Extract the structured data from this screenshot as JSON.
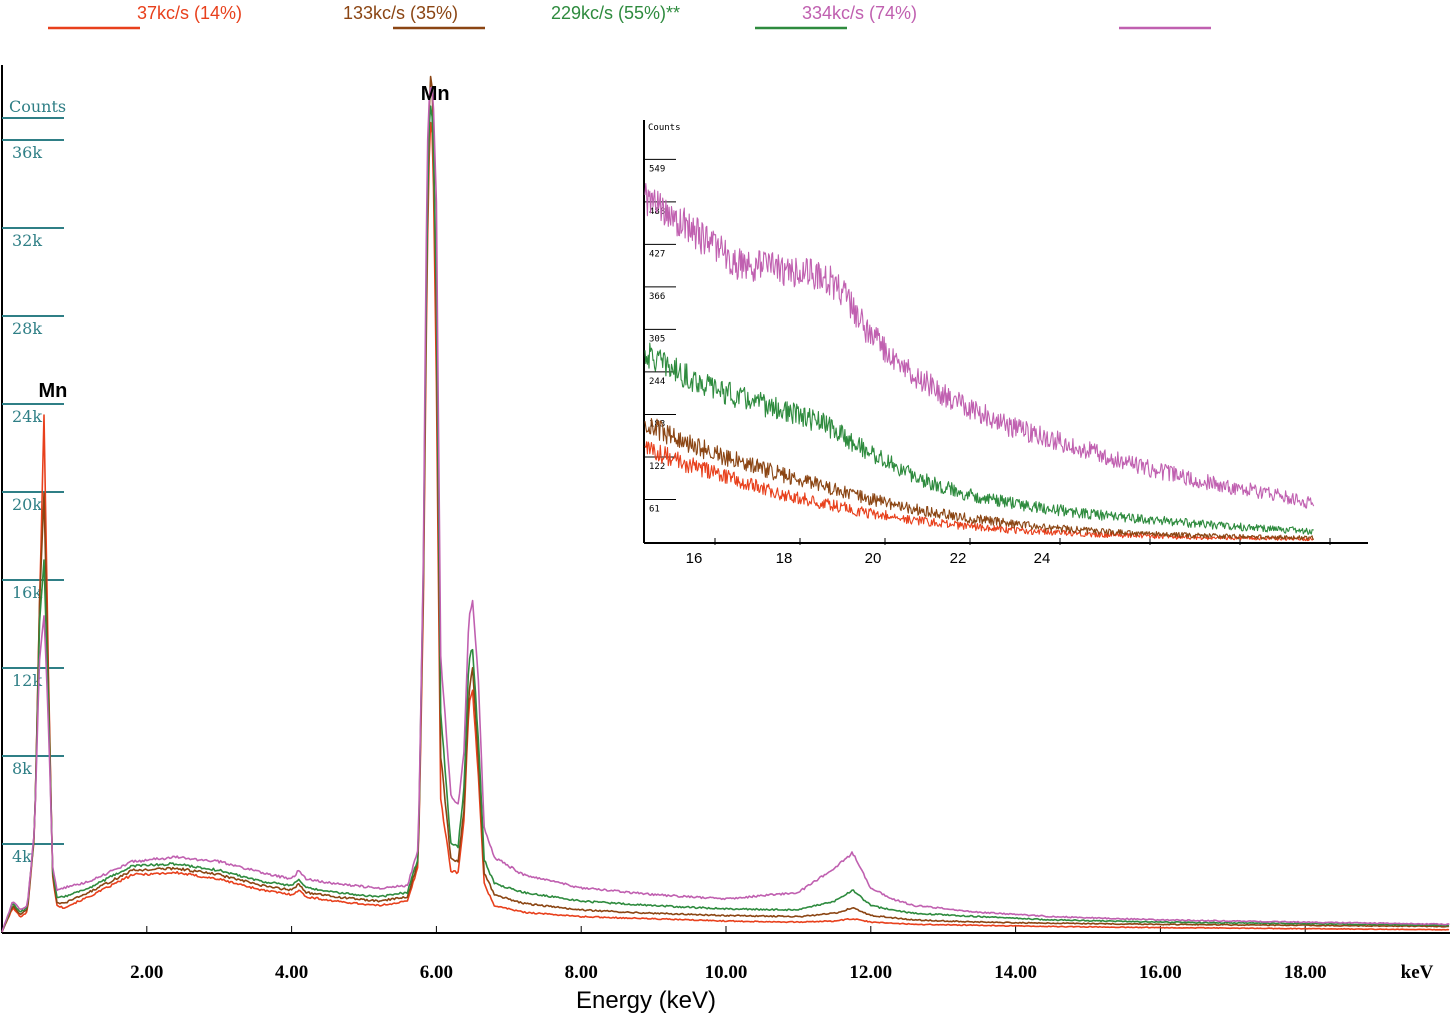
{
  "colors": {
    "red": "#e8401c",
    "brown": "#8b4513",
    "green": "#2e8b3e",
    "magenta": "#c060b0",
    "axis": "#000000",
    "tick": "#2f7f86"
  },
  "legend": [
    {
      "label": "37kc/s (14%)",
      "color": "#e8401c"
    },
    {
      "label": "133kc/s (35%)",
      "color": "#8b4513"
    },
    {
      "label": "229kc/s (55%)**",
      "color": "#2e8b3e"
    },
    {
      "label": "334kc/s (74%)",
      "color": "#c060b0"
    }
  ],
  "chart_data": [
    {
      "type": "line",
      "xlabel": "Energy (keV)",
      "x_unit_label": "keV",
      "ylabel": "Counts",
      "xlim": [
        0,
        20
      ],
      "ylim": [
        0,
        40000
      ],
      "x_ticks": [
        "2.00",
        "4.00",
        "6.00",
        "8.00",
        "10.00",
        "12.00",
        "14.00",
        "16.00",
        "18.00"
      ],
      "x_tick_values": [
        2,
        4,
        6,
        8,
        10,
        12,
        14,
        16,
        18
      ],
      "y_ticks": [
        "4k",
        "8k",
        "12k",
        "16k",
        "20k",
        "24k",
        "28k",
        "32k",
        "36k"
      ],
      "y_tick_values": [
        4000,
        8000,
        12000,
        16000,
        20000,
        24000,
        28000,
        32000,
        36000
      ],
      "annotations": [
        {
          "text": "Mn",
          "x": 0.62,
          "y": 24500
        },
        {
          "text": "Mn",
          "x": 5.9,
          "y": 38000
        }
      ],
      "series": [
        {
          "name": "37kc/s (14%)",
          "color": "#e8401c",
          "x": [
            0,
            0.15,
            0.25,
            0.35,
            0.45,
            0.52,
            0.58,
            0.64,
            0.7,
            0.76,
            0.85,
            1.2,
            1.8,
            2.4,
            3.0,
            3.6,
            4.0,
            4.1,
            4.2,
            4.6,
            5.2,
            5.6,
            5.75,
            5.82,
            5.87,
            5.91,
            5.95,
            6.0,
            6.06,
            6.2,
            6.3,
            6.38,
            6.45,
            6.5,
            6.58,
            6.66,
            6.8,
            7.2,
            8.0,
            9.0,
            10.0,
            11.0,
            11.5,
            11.75,
            12.0,
            12.3,
            12.6,
            13.5,
            14.5,
            16.0,
            18.0,
            20.0
          ],
          "y": [
            0,
            1100,
            700,
            900,
            4500,
            15000,
            23500,
            12000,
            2500,
            1200,
            1100,
            1600,
            2600,
            2700,
            2400,
            1900,
            1700,
            1900,
            1600,
            1400,
            1200,
            1400,
            3000,
            15000,
            30000,
            37000,
            36000,
            25000,
            6000,
            2800,
            2700,
            5000,
            10500,
            11000,
            7000,
            2200,
            1200,
            900,
            700,
            600,
            500,
            450,
            500,
            600,
            450,
            400,
            350,
            300,
            250,
            200,
            150,
            100
          ]
        },
        {
          "name": "133kc/s (35%)",
          "color": "#8b4513",
          "x": [
            0,
            0.15,
            0.25,
            0.35,
            0.45,
            0.52,
            0.58,
            0.64,
            0.7,
            0.76,
            0.85,
            1.2,
            1.8,
            2.4,
            3.0,
            3.6,
            4.0,
            4.1,
            4.2,
            4.6,
            5.2,
            5.6,
            5.75,
            5.82,
            5.87,
            5.91,
            5.95,
            6.0,
            6.06,
            6.2,
            6.3,
            6.38,
            6.45,
            6.5,
            6.58,
            6.66,
            6.8,
            7.2,
            8.0,
            9.0,
            10.0,
            11.0,
            11.5,
            11.75,
            12.0,
            12.3,
            12.6,
            13.5,
            14.5,
            16.0,
            18.0,
            20.0
          ],
          "y": [
            0,
            1200,
            800,
            1000,
            4600,
            15000,
            20000,
            11500,
            2600,
            1300,
            1300,
            1800,
            2800,
            2900,
            2600,
            2100,
            1900,
            2200,
            1800,
            1600,
            1400,
            1600,
            3200,
            16000,
            32000,
            39000,
            38000,
            28000,
            8000,
            3300,
            3200,
            5500,
            11000,
            12000,
            8000,
            2700,
            1700,
            1300,
            1000,
            850,
            750,
            700,
            850,
            1100,
            750,
            650,
            550,
            450,
            400,
            350,
            300,
            250
          ]
        },
        {
          "name": "229kc/s (55%)**",
          "color": "#2e8b3e",
          "x": [
            0,
            0.15,
            0.25,
            0.35,
            0.45,
            0.52,
            0.58,
            0.64,
            0.7,
            0.76,
            0.85,
            1.2,
            1.8,
            2.4,
            3.0,
            3.6,
            4.0,
            4.1,
            4.2,
            4.6,
            5.2,
            5.6,
            5.75,
            5.82,
            5.87,
            5.91,
            5.95,
            6.0,
            6.06,
            6.2,
            6.3,
            6.38,
            6.45,
            6.5,
            6.58,
            6.66,
            6.8,
            7.2,
            8.0,
            9.0,
            10.0,
            11.0,
            11.5,
            11.75,
            12.0,
            12.3,
            12.6,
            13.5,
            14.5,
            16.0,
            18.0,
            20.0
          ],
          "y": [
            0,
            1300,
            900,
            1100,
            4600,
            14000,
            17000,
            10500,
            2800,
            1600,
            1600,
            2000,
            3000,
            3100,
            2800,
            2300,
            2100,
            2400,
            2000,
            1800,
            1600,
            1800,
            3400,
            16500,
            32000,
            38000,
            37000,
            29000,
            10000,
            4000,
            3900,
            6500,
            12500,
            12800,
            8800,
            3300,
            2200,
            1800,
            1400,
            1200,
            1050,
            1000,
            1400,
            1900,
            1200,
            1000,
            850,
            700,
            550,
            450,
            380,
            300
          ]
        },
        {
          "name": "334kc/s (74%)",
          "color": "#c060b0",
          "x": [
            0,
            0.15,
            0.25,
            0.35,
            0.45,
            0.52,
            0.58,
            0.64,
            0.7,
            0.76,
            0.85,
            1.2,
            1.8,
            2.4,
            3.0,
            3.6,
            4.0,
            4.1,
            4.2,
            4.6,
            5.2,
            5.6,
            5.75,
            5.82,
            5.87,
            5.91,
            5.95,
            6.0,
            6.06,
            6.2,
            6.3,
            6.38,
            6.45,
            6.5,
            6.58,
            6.66,
            6.8,
            7.2,
            8.0,
            9.0,
            10.0,
            11.0,
            11.5,
            11.75,
            12.0,
            12.3,
            12.6,
            13.5,
            14.5,
            16.0,
            18.0,
            20.0
          ],
          "y": [
            0,
            1400,
            1000,
            1200,
            4700,
            12500,
            14500,
            9500,
            3000,
            1900,
            2000,
            2300,
            3200,
            3400,
            3200,
            2700,
            2400,
            2800,
            2400,
            2200,
            2000,
            2100,
            3800,
            17000,
            35000,
            38500,
            38500,
            33000,
            12500,
            6200,
            5800,
            8200,
            14500,
            15000,
            11500,
            4800,
            3400,
            2600,
            2000,
            1700,
            1500,
            1800,
            2900,
            3600,
            2000,
            1500,
            1200,
            900,
            700,
            550,
            450,
            350
          ]
        }
      ]
    },
    {
      "type": "line",
      "ylabel": "Counts",
      "xlim": [
        15,
        30
      ],
      "ylim": [
        0,
        610
      ],
      "x_ticks": [
        "16",
        "18",
        "20",
        "22",
        "24"
      ],
      "x_tick_values": [
        16,
        18,
        20,
        22,
        24
      ],
      "y_ticks": [
        "61",
        "122",
        "183",
        "244",
        "305",
        "366",
        "427",
        "488",
        "549"
      ],
      "y_tick_values": [
        61,
        122,
        183,
        244,
        305,
        366,
        427,
        488,
        549
      ],
      "series": [
        {
          "name": "37kc/s (14%)",
          "color": "#e8401c",
          "x": [
            15,
            16,
            17,
            18,
            19,
            20,
            21,
            22,
            23,
            24,
            25,
            26,
            27,
            28,
            29,
            30
          ],
          "y": [
            135,
            110,
            90,
            70,
            55,
            42,
            32,
            24,
            18,
            14,
            11,
            9,
            7,
            6,
            5,
            4
          ]
        },
        {
          "name": "133kc/s (35%)",
          "color": "#8b4513",
          "x": [
            15,
            16,
            17,
            18,
            19,
            20,
            21,
            22,
            23,
            24,
            25,
            26,
            27,
            28,
            29,
            30
          ],
          "y": [
            170,
            140,
            118,
            98,
            80,
            62,
            48,
            37,
            28,
            21,
            16,
            12,
            10,
            8,
            7,
            6
          ]
        },
        {
          "name": "229kc/s (55%)**",
          "color": "#2e8b3e",
          "x": [
            15,
            16,
            17,
            18,
            19,
            20,
            21,
            22,
            23,
            24,
            25,
            26,
            27,
            28,
            29,
            30
          ],
          "y": [
            270,
            235,
            210,
            190,
            170,
            130,
            95,
            72,
            58,
            48,
            40,
            34,
            28,
            23,
            19,
            15
          ]
        },
        {
          "name": "334kc/s (74%)",
          "color": "#c060b0",
          "x": [
            15,
            16,
            17,
            18,
            19,
            19.5,
            20,
            21,
            22,
            23,
            24,
            25,
            26,
            27,
            28,
            29,
            30
          ],
          "y": [
            490,
            450,
            400,
            390,
            385,
            350,
            300,
            240,
            200,
            170,
            150,
            130,
            110,
            95,
            80,
            70,
            55
          ]
        }
      ]
    }
  ]
}
